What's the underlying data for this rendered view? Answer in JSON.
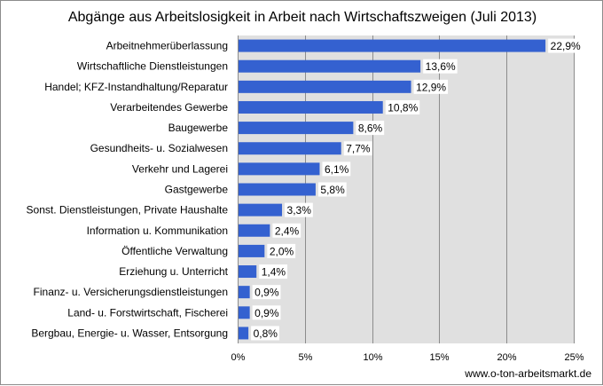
{
  "chart_data": {
    "type": "bar",
    "orientation": "horizontal",
    "title": "Abgänge aus Arbeitslosigkeit in Arbeit nach Wirtschaftszweigen (Juli 2013)",
    "categories": [
      "Arbeitnehmerüberlassung",
      "Wirtschaftliche Dienstleistungen",
      "Handel; KFZ-Instandhaltung/Reparatur",
      "Verarbeitendes Gewerbe",
      "Baugewerbe",
      "Gesundheits- u. Sozialwesen",
      "Verkehr und Lagerei",
      "Gastgewerbe",
      "Sonst. Dienstleistungen, Private Haushalte",
      "Information u. Kommunikation",
      "Öffentliche Verwaltung",
      "Erziehung u. Unterricht",
      "Finanz- u. Versicherungsdienstleistungen",
      "Land- u. Forstwirtschaft, Fischerei",
      "Bergbau, Energie- u. Wasser, Entsorgung"
    ],
    "values": [
      22.9,
      13.6,
      12.9,
      10.8,
      8.6,
      7.7,
      6.1,
      5.8,
      3.3,
      2.4,
      2.0,
      1.4,
      0.9,
      0.9,
      0.8
    ],
    "value_labels": [
      "22,9%",
      "13,6%",
      "12,9%",
      "10,8%",
      "8,6%",
      "7,7%",
      "6,1%",
      "5,8%",
      "3,3%",
      "2,4%",
      "2,0%",
      "1,4%",
      "0,9%",
      "0,9%",
      "0,8%"
    ],
    "xlim": [
      0,
      25
    ],
    "xticks": [
      0,
      5,
      10,
      15,
      20,
      25
    ],
    "xtick_labels": [
      "0%",
      "5%",
      "10%",
      "15%",
      "20%",
      "25%"
    ],
    "grid": true,
    "colors": {
      "bar": "#3461d0",
      "plot_background": "#e0e0e0",
      "grid": "#8c8c8c"
    },
    "source": "www.o-ton-arbeitsmarkt.de"
  }
}
